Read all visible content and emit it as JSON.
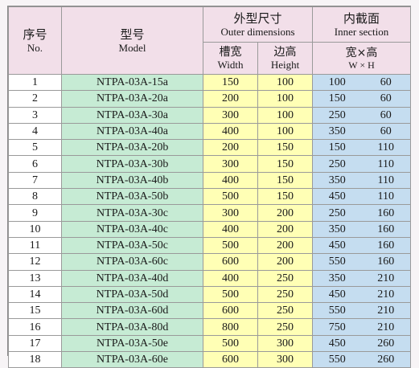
{
  "header": {
    "no_zh": "序号",
    "no_en": "No.",
    "model_zh": "型号",
    "model_en": "Model",
    "outer_zh": "外型尺寸",
    "outer_en": "Outer dimensions",
    "inner_zh": "内截面",
    "inner_en": "Inner section",
    "width_zh": "槽宽",
    "width_en": "Width",
    "height_zh": "边高",
    "height_en": "Height",
    "inner_sub_zh": "宽×高",
    "inner_sub_en": "W × H"
  },
  "colors": {
    "header_bg": "#f2dfe9",
    "model_bg": "#c6ebd4",
    "outer_bg": "#ffffb5",
    "inner_bg": "#c5ddf0"
  },
  "rows": [
    {
      "no": "1",
      "model": "NTPA-03A-15a",
      "width": "150",
      "height": "100",
      "inner_w": "100",
      "inner_h": "60"
    },
    {
      "no": "2",
      "model": "NTPA-03A-20a",
      "width": "200",
      "height": "100",
      "inner_w": "150",
      "inner_h": "60"
    },
    {
      "no": "3",
      "model": "NTPA-03A-30a",
      "width": "300",
      "height": "100",
      "inner_w": "250",
      "inner_h": "60"
    },
    {
      "no": "4",
      "model": "NTPA-03A-40a",
      "width": "400",
      "height": "100",
      "inner_w": "350",
      "inner_h": "60"
    },
    {
      "no": "5",
      "model": "NTPA-03A-20b",
      "width": "200",
      "height": "150",
      "inner_w": "150",
      "inner_h": "110"
    },
    {
      "no": "6",
      "model": "NTPA-03A-30b",
      "width": "300",
      "height": "150",
      "inner_w": "250",
      "inner_h": "110"
    },
    {
      "no": "7",
      "model": "NTPA-03A-40b",
      "width": "400",
      "height": "150",
      "inner_w": "350",
      "inner_h": "110"
    },
    {
      "no": "8",
      "model": "NTPA-03A-50b",
      "width": "500",
      "height": "150",
      "inner_w": "450",
      "inner_h": "110"
    },
    {
      "no": "9",
      "model": "NTPA-03A-30c",
      "width": "300",
      "height": "200",
      "inner_w": "250",
      "inner_h": "160"
    },
    {
      "no": "10",
      "model": "NTPA-03A-40c",
      "width": "400",
      "height": "200",
      "inner_w": "350",
      "inner_h": "160"
    },
    {
      "no": "11",
      "model": "NTPA-03A-50c",
      "width": "500",
      "height": "200",
      "inner_w": "450",
      "inner_h": "160"
    },
    {
      "no": "12",
      "model": "NTPA-03A-60c",
      "width": "600",
      "height": "200",
      "inner_w": "550",
      "inner_h": "160"
    },
    {
      "no": "13",
      "model": "NTPA-03A-40d",
      "width": "400",
      "height": "250",
      "inner_w": "350",
      "inner_h": "210"
    },
    {
      "no": "14",
      "model": "NTPA-03A-50d",
      "width": "500",
      "height": "250",
      "inner_w": "450",
      "inner_h": "210"
    },
    {
      "no": "15",
      "model": "NTPA-03A-60d",
      "width": "600",
      "height": "250",
      "inner_w": "550",
      "inner_h": "210"
    },
    {
      "no": "16",
      "model": "NTPA-03A-80d",
      "width": "800",
      "height": "250",
      "inner_w": "750",
      "inner_h": "210"
    },
    {
      "no": "17",
      "model": "NTPA-03A-50e",
      "width": "500",
      "height": "300",
      "inner_w": "450",
      "inner_h": "260"
    },
    {
      "no": "18",
      "model": "NTPA-03A-60e",
      "width": "600",
      "height": "300",
      "inner_w": "550",
      "inner_h": "260"
    }
  ]
}
